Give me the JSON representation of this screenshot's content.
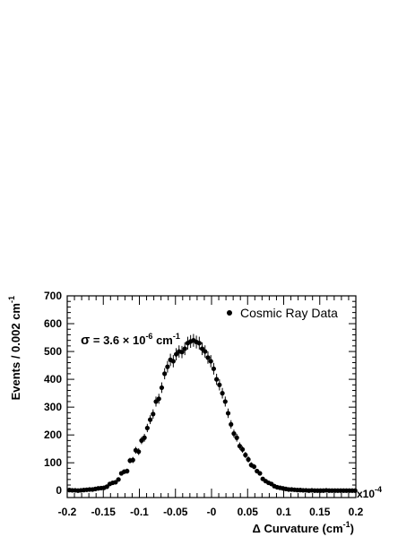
{
  "chart_data": {
    "type": "scatter",
    "xlabel": {
      "prefix": "Δ Curvature  (cm",
      "sup": "-1",
      "suffix": ")"
    },
    "ylabel": {
      "prefix": "Events  /  0.002 cm",
      "sup": "-1"
    },
    "x_multiplier": {
      "base": "x10",
      "exp": "-4"
    },
    "xlim": [
      -0.2,
      0.2
    ],
    "ylim": [
      -25,
      700
    ],
    "x_ticks": [
      "-0.2",
      "-0.15",
      "-0.1",
      "-0.05",
      "-0",
      "0.05",
      "0.1",
      "0.15",
      "0.2"
    ],
    "y_ticks": [
      "0",
      "100",
      "200",
      "300",
      "400",
      "500",
      "600",
      "700"
    ],
    "legend": {
      "label": "Cosmic Ray Data",
      "position": "top-right"
    },
    "annotation": {
      "sigma": "σ",
      "text1": " = 3.6 × 10",
      "exp1": "-6",
      "text2": " cm",
      "exp2": "-1"
    },
    "series": [
      {
        "name": "Cosmic Ray Data",
        "color": "#000000",
        "x": [
          -0.197,
          -0.193,
          -0.189,
          -0.185,
          -0.181,
          -0.177,
          -0.173,
          -0.169,
          -0.165,
          -0.161,
          -0.157,
          -0.153,
          -0.149,
          -0.145,
          -0.141,
          -0.137,
          -0.133,
          -0.129,
          -0.125,
          -0.121,
          -0.117,
          -0.113,
          -0.109,
          -0.105,
          -0.101,
          -0.097,
          -0.093,
          -0.089,
          -0.085,
          -0.081,
          -0.077,
          -0.073,
          -0.069,
          -0.065,
          -0.061,
          -0.057,
          -0.053,
          -0.049,
          -0.045,
          -0.041,
          -0.037,
          -0.033,
          -0.029,
          -0.025,
          -0.021,
          -0.017,
          -0.013,
          -0.009,
          -0.005,
          -0.001,
          0.003,
          0.007,
          0.011,
          0.015,
          0.019,
          0.023,
          0.027,
          0.031,
          0.035,
          0.039,
          0.043,
          0.047,
          0.051,
          0.055,
          0.059,
          0.063,
          0.067,
          0.071,
          0.075,
          0.079,
          0.083,
          0.087,
          0.091,
          0.095,
          0.099,
          0.103,
          0.107,
          0.111,
          0.115,
          0.119,
          0.123,
          0.127,
          0.131,
          0.135,
          0.139,
          0.143,
          0.147,
          0.151,
          0.155,
          0.159,
          0.163,
          0.167,
          0.171,
          0.175,
          0.179,
          0.183,
          0.187,
          0.191,
          0.195,
          0.199
        ],
        "y": [
          2,
          1,
          1,
          0,
          1,
          2,
          3,
          4,
          4,
          6,
          8,
          9,
          10,
          14,
          24,
          28,
          30,
          40,
          62,
          68,
          70,
          108,
          110,
          145,
          140,
          180,
          190,
          225,
          255,
          275,
          320,
          330,
          370,
          420,
          445,
          470,
          465,
          490,
          500,
          498,
          510,
          530,
          536,
          540,
          534,
          530,
          510,
          500,
          478,
          465,
          438,
          400,
          380,
          350,
          320,
          278,
          238,
          205,
          190,
          160,
          148,
          128,
          112,
          92,
          86,
          70,
          62,
          42,
          34,
          28,
          24,
          16,
          12,
          10,
          8,
          6,
          4,
          4,
          3,
          2,
          2,
          1,
          1,
          0,
          1,
          0,
          0,
          0,
          0,
          1,
          0,
          0,
          0,
          0,
          0,
          0,
          0,
          0,
          0,
          0
        ],
        "err": [
          2,
          1,
          1,
          1,
          1,
          2,
          2,
          2,
          2,
          3,
          3,
          3,
          3,
          4,
          5,
          5,
          6,
          6,
          8,
          8,
          9,
          10,
          11,
          12,
          12,
          13,
          14,
          15,
          16,
          17,
          18,
          18,
          19,
          20,
          21,
          22,
          22,
          22,
          22,
          22,
          23,
          23,
          23,
          23,
          23,
          23,
          23,
          22,
          22,
          22,
          21,
          20,
          20,
          19,
          18,
          17,
          15,
          14,
          14,
          13,
          12,
          11,
          11,
          10,
          9,
          8,
          8,
          7,
          6,
          5,
          5,
          4,
          4,
          3,
          3,
          2,
          2,
          2,
          2,
          1,
          1,
          1,
          1,
          1,
          1,
          1,
          1,
          1,
          1,
          1,
          1,
          1,
          1,
          1,
          1,
          1,
          1,
          1,
          1,
          1
        ]
      }
    ]
  }
}
